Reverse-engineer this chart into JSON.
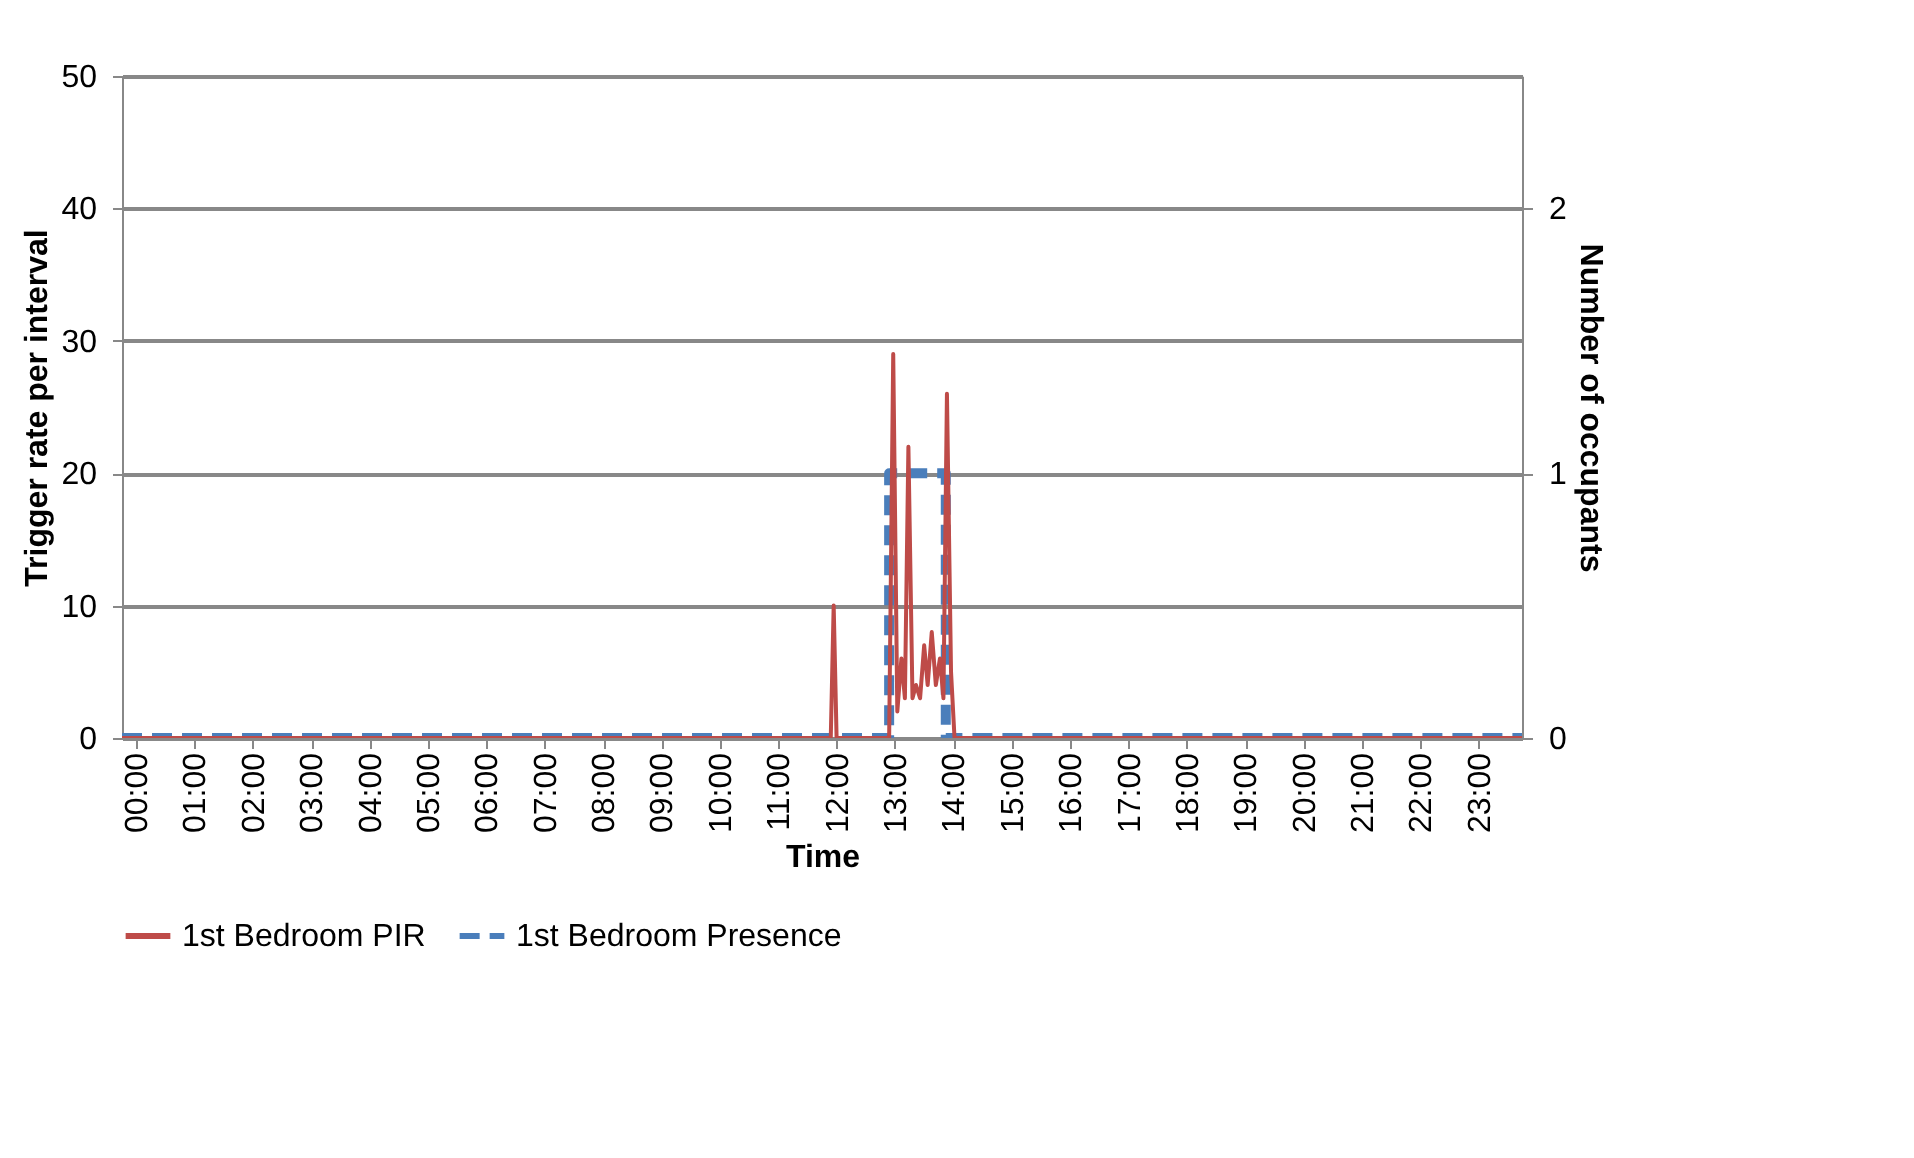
{
  "chart_data": {
    "type": "line",
    "xlabel": "Time",
    "ylabel": "Trigger rate per interval",
    "y2label": "Number of occupants",
    "xlim": [
      -0.24,
      23.74
    ],
    "xticks": [
      {
        "value": 0,
        "label": "00:00"
      },
      {
        "value": 1,
        "label": "01:00"
      },
      {
        "value": 2,
        "label": "02:00"
      },
      {
        "value": 3,
        "label": "03:00"
      },
      {
        "value": 4,
        "label": "04:00"
      },
      {
        "value": 5,
        "label": "05:00"
      },
      {
        "value": 6,
        "label": "06:00"
      },
      {
        "value": 7,
        "label": "07:00"
      },
      {
        "value": 8,
        "label": "08:00"
      },
      {
        "value": 9,
        "label": "09:00"
      },
      {
        "value": 10,
        "label": "10:00"
      },
      {
        "value": 11,
        "label": "11:00"
      },
      {
        "value": 12,
        "label": "12:00"
      },
      {
        "value": 13,
        "label": "13:00"
      },
      {
        "value": 14,
        "label": "14:00"
      },
      {
        "value": 15,
        "label": "15:00"
      },
      {
        "value": 16,
        "label": "16:00"
      },
      {
        "value": 17,
        "label": "17:00"
      },
      {
        "value": 18,
        "label": "18:00"
      },
      {
        "value": 19,
        "label": "19:00"
      },
      {
        "value": 20,
        "label": "20:00"
      },
      {
        "value": 21,
        "label": "21:00"
      },
      {
        "value": 22,
        "label": "22:00"
      },
      {
        "value": 23,
        "label": "23:00"
      }
    ],
    "ylim": [
      0,
      50
    ],
    "yticks": [
      0,
      10,
      20,
      30,
      40,
      50
    ],
    "y2lim": [
      0,
      2.5
    ],
    "y2ticks": [
      0,
      1,
      2
    ],
    "grid": "y",
    "legend": "bottom",
    "series": [
      {
        "name": "1st Bedroom PIR",
        "color": "#be4b48",
        "line_style": "solid",
        "x": [
          -0.24,
          11.9,
          11.95,
          12.0,
          12.9,
          12.97,
          13.04,
          13.11,
          13.17,
          13.23,
          13.3,
          13.36,
          13.43,
          13.5,
          13.56,
          13.63,
          13.7,
          13.77,
          13.83,
          13.89,
          13.96,
          14.02,
          23.74
        ],
        "values": [
          0,
          0,
          10,
          0,
          0,
          29,
          2,
          6,
          3,
          22,
          3,
          4,
          3,
          7,
          4,
          8,
          4,
          6,
          3,
          26,
          5,
          0,
          0
        ]
      },
      {
        "name": "1st Bedroom Presence",
        "color": "#4a7ebb",
        "line_style": "dashed",
        "axis": "y2",
        "x": [
          -0.24,
          12.9,
          12.9,
          13.87,
          13.87,
          23.74
        ],
        "values": [
          0,
          0,
          1,
          1,
          0,
          0
        ]
      }
    ]
  }
}
